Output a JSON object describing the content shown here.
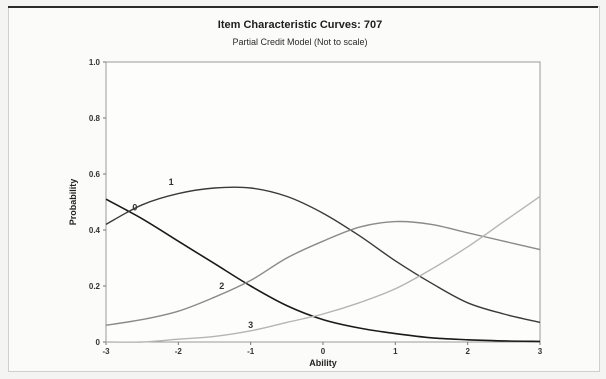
{
  "chart_data": {
    "type": "line",
    "title": "Item Characteristic Curves: 707",
    "subtitle": "Partial Credit Model (Not to scale)",
    "xlabel": "Ability",
    "ylabel": "Probability",
    "xlim": [
      -3,
      3
    ],
    "ylim": [
      0,
      1
    ],
    "x_ticks": [
      "-3",
      "-2",
      "-1",
      "0",
      "1",
      "2",
      "3"
    ],
    "y_ticks": [
      "0",
      "0.2",
      "0.4",
      "0.6",
      "0.8",
      "1.0"
    ],
    "grid": false,
    "legend": "none",
    "series": [
      {
        "name": "0",
        "color": "#1a1a1a",
        "x": [
          -3,
          -2.5,
          -2,
          -1.5,
          -1,
          -0.5,
          0,
          0.5,
          1,
          1.5,
          2,
          2.5,
          3
        ],
        "values": [
          0.51,
          0.44,
          0.36,
          0.28,
          0.2,
          0.13,
          0.08,
          0.05,
          0.03,
          0.015,
          0.008,
          0.004,
          0.002
        ]
      },
      {
        "name": "1",
        "color": "#3a3a3a",
        "x": [
          -3,
          -2.5,
          -2,
          -1.5,
          -1,
          -0.5,
          0,
          0.5,
          1,
          1.5,
          2,
          2.5,
          3
        ],
        "values": [
          0.42,
          0.49,
          0.53,
          0.55,
          0.55,
          0.52,
          0.46,
          0.38,
          0.29,
          0.21,
          0.14,
          0.1,
          0.07
        ]
      },
      {
        "name": "2",
        "color": "#8a8a8a",
        "x": [
          -3,
          -2.5,
          -2,
          -1.5,
          -1,
          -0.5,
          0,
          0.5,
          1,
          1.5,
          2,
          2.5,
          3
        ],
        "values": [
          0.06,
          0.08,
          0.11,
          0.16,
          0.22,
          0.3,
          0.36,
          0.41,
          0.43,
          0.42,
          0.39,
          0.36,
          0.33
        ]
      },
      {
        "name": "3",
        "color": "#b5b5b5",
        "x": [
          -3,
          -2.5,
          -2,
          -1.5,
          -1,
          -0.5,
          0,
          0.5,
          1,
          1.5,
          2,
          2.5,
          3
        ],
        "values": [
          0.0,
          0.0,
          0.01,
          0.02,
          0.04,
          0.07,
          0.1,
          0.14,
          0.19,
          0.26,
          0.34,
          0.43,
          0.52
        ]
      }
    ],
    "series_labels": [
      {
        "text": "1",
        "x": -2.1,
        "y": 0.56
      },
      {
        "text": "0",
        "x": -2.6,
        "y": 0.47
      },
      {
        "text": "2",
        "x": -1.4,
        "y": 0.19
      },
      {
        "text": "3",
        "x": -1.0,
        "y": 0.05
      }
    ]
  }
}
